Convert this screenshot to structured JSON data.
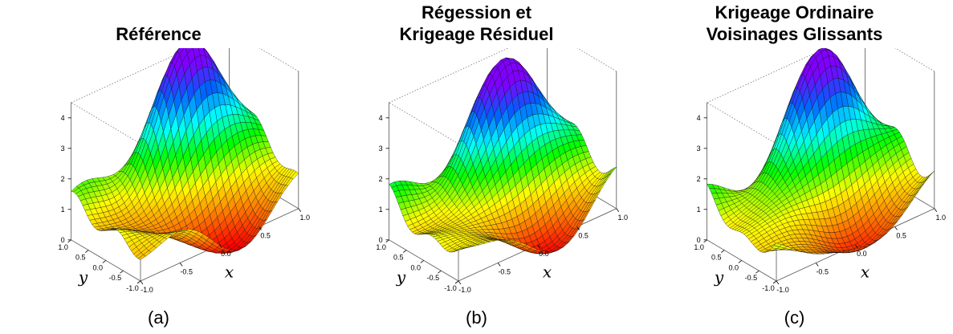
{
  "panels": [
    {
      "title_lines": [
        "",
        "Référence"
      ],
      "caption": "(a)",
      "chart_data": {
        "type": "surface",
        "xlabel": "x",
        "ylabel": "y",
        "xlim": [
          -1.0,
          1.0
        ],
        "ylim": [
          -1.0,
          1.0
        ],
        "zlim": [
          0,
          4.5
        ],
        "x_ticks": [
          "-1.0",
          "-0.5",
          "0.0",
          "0.5",
          "1.0"
        ],
        "y_ticks": [
          "1.0",
          "0.5",
          "0.0",
          "-0.5",
          "-1.0"
        ],
        "z_ticks": [
          "0",
          "1",
          "2",
          "3",
          "4"
        ],
        "colormap": [
          "#ff0000",
          "#ff8000",
          "#ffff00",
          "#00ff00",
          "#00ffff",
          "#0060ff",
          "#8000ff"
        ],
        "surface_features": {
          "peak_height": 4.6,
          "trough_height": -0.6,
          "left_edge_level": 1.4,
          "variant": 0
        }
      }
    },
    {
      "title_lines": [
        "Régession et",
        "Krigeage Résiduel"
      ],
      "caption": "(b)",
      "chart_data": {
        "type": "surface",
        "xlabel": "x",
        "ylabel": "y",
        "xlim": [
          -1.0,
          1.0
        ],
        "ylim": [
          -1.0,
          1.0
        ],
        "zlim": [
          0,
          4.5
        ],
        "x_ticks": [
          "-1.0",
          "-0.5",
          "0.0",
          "0.5",
          "1.0"
        ],
        "y_ticks": [
          "1.0",
          "0.5",
          "0.0",
          "-0.5",
          "-1.0"
        ],
        "z_ticks": [
          "0",
          "1",
          "2",
          "3",
          "4"
        ],
        "colormap": [
          "#ff0000",
          "#ff8000",
          "#ffff00",
          "#00ff00",
          "#00ffff",
          "#0060ff",
          "#8000ff"
        ],
        "surface_features": {
          "peak_height": 4.0,
          "trough_height": -0.7,
          "left_edge_level": 1.4,
          "variant": 1
        }
      }
    },
    {
      "title_lines": [
        "Krigeage Ordinaire",
        "Voisinages Glissants"
      ],
      "caption": "(c)",
      "chart_data": {
        "type": "surface",
        "xlabel": "x",
        "ylabel": "y",
        "xlim": [
          -1.0,
          1.0
        ],
        "ylim": [
          -1.0,
          1.0
        ],
        "zlim": [
          0,
          4.5
        ],
        "x_ticks": [
          "-1.0",
          "-0.5",
          "0.0",
          "0.5",
          "1.0"
        ],
        "y_ticks": [
          "1.0",
          "0.5",
          "0.0",
          "-0.5",
          "-1.0"
        ],
        "z_ticks": [
          "0",
          "1",
          "2",
          "3",
          "4"
        ],
        "colormap": [
          "#ff0000",
          "#ff8000",
          "#ffff00",
          "#00ff00",
          "#00ffff",
          "#0060ff",
          "#8000ff"
        ],
        "surface_features": {
          "peak_height": 4.4,
          "trough_height": -0.8,
          "left_edge_level": 1.5,
          "variant": 2
        }
      }
    }
  ]
}
